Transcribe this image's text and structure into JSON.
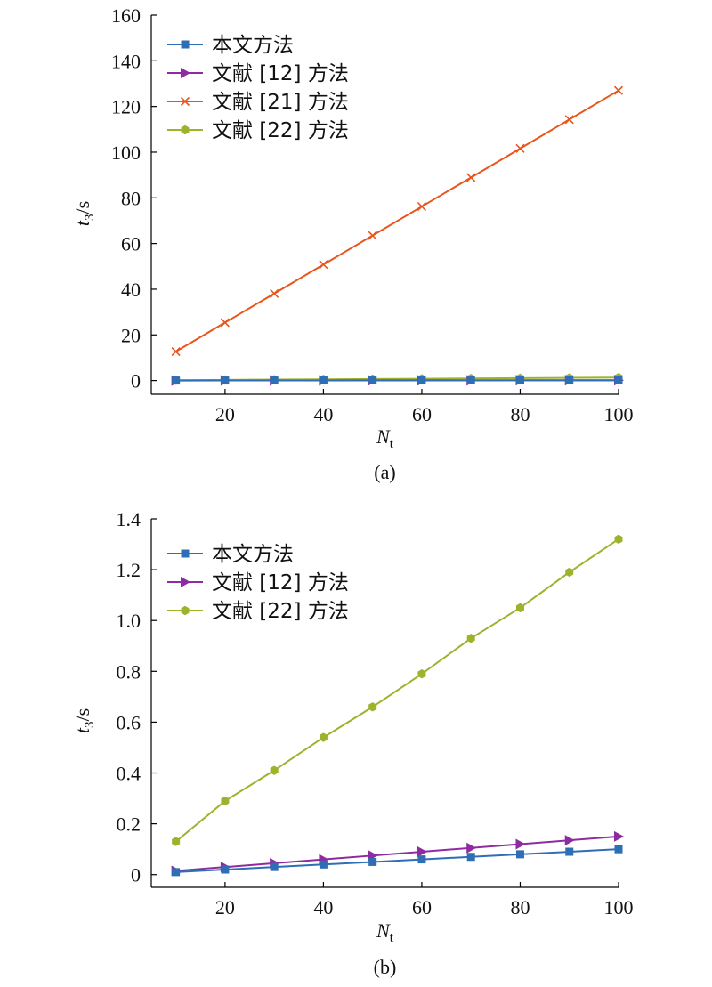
{
  "chart_data": [
    {
      "type": "line",
      "panel_label": "(a)",
      "xlabel": "N",
      "xlabel_sub": "t",
      "ylabel": "t",
      "ylabel_sub": "3",
      "ylabel_unit": "/s",
      "xlim": [
        5,
        100
      ],
      "ylim": [
        -6,
        160
      ],
      "xticks": [
        20,
        40,
        60,
        80,
        100
      ],
      "yticks": [
        0,
        20,
        40,
        60,
        80,
        100,
        120,
        140,
        160
      ],
      "grid": false,
      "legend_position": "top-left",
      "x": [
        10,
        20,
        30,
        40,
        50,
        60,
        70,
        80,
        90,
        100
      ],
      "series": [
        {
          "name": "本文方法",
          "marker": "square",
          "color": "#2e6eb5",
          "values": [
            0.01,
            0.02,
            0.03,
            0.04,
            0.05,
            0.06,
            0.07,
            0.08,
            0.09,
            0.1
          ]
        },
        {
          "name": "文献 [12] 方法",
          "marker": "triangle-right",
          "color": "#8e2ba0",
          "values": [
            0.015,
            0.03,
            0.045,
            0.06,
            0.075,
            0.09,
            0.105,
            0.12,
            0.135,
            0.15
          ]
        },
        {
          "name": "文献 [21] 方法",
          "marker": "x",
          "color": "#e8561c",
          "values": [
            12.7,
            25.4,
            38.1,
            50.8,
            63.5,
            76.2,
            88.9,
            101.6,
            114.3,
            127.0
          ]
        },
        {
          "name": "文献 [22] 方法",
          "marker": "hexagon",
          "color": "#9eb22c",
          "values": [
            0.13,
            0.29,
            0.41,
            0.54,
            0.66,
            0.79,
            0.93,
            1.05,
            1.19,
            1.32
          ]
        }
      ]
    },
    {
      "type": "line",
      "panel_label": "(b)",
      "xlabel": "N",
      "xlabel_sub": "t",
      "ylabel": "t",
      "ylabel_sub": "3",
      "ylabel_unit": "/s",
      "xlim": [
        5,
        100
      ],
      "ylim": [
        -0.05,
        1.4
      ],
      "xticks": [
        20,
        40,
        60,
        80,
        100
      ],
      "yticks": [
        0,
        0.2,
        0.4,
        0.6,
        0.8,
        1.0,
        1.2,
        1.4
      ],
      "yticks_labels": [
        "0",
        "0.2",
        "0.4",
        "0.6",
        "0.8",
        "1.0",
        "1.2",
        "1.4"
      ],
      "grid": false,
      "legend_position": "top-left",
      "x": [
        10,
        20,
        30,
        40,
        50,
        60,
        70,
        80,
        90,
        100
      ],
      "series": [
        {
          "name": "本文方法",
          "marker": "square",
          "color": "#2e6eb5",
          "values": [
            0.01,
            0.02,
            0.03,
            0.04,
            0.05,
            0.06,
            0.07,
            0.08,
            0.09,
            0.1
          ]
        },
        {
          "name": "文献 [12] 方法",
          "marker": "triangle-right",
          "color": "#8e2ba0",
          "values": [
            0.015,
            0.03,
            0.045,
            0.06,
            0.075,
            0.09,
            0.105,
            0.12,
            0.135,
            0.15
          ]
        },
        {
          "name": "文献 [22] 方法",
          "marker": "hexagon",
          "color": "#9eb22c",
          "values": [
            0.13,
            0.29,
            0.41,
            0.54,
            0.66,
            0.79,
            0.93,
            1.05,
            1.19,
            1.32
          ]
        }
      ]
    }
  ]
}
